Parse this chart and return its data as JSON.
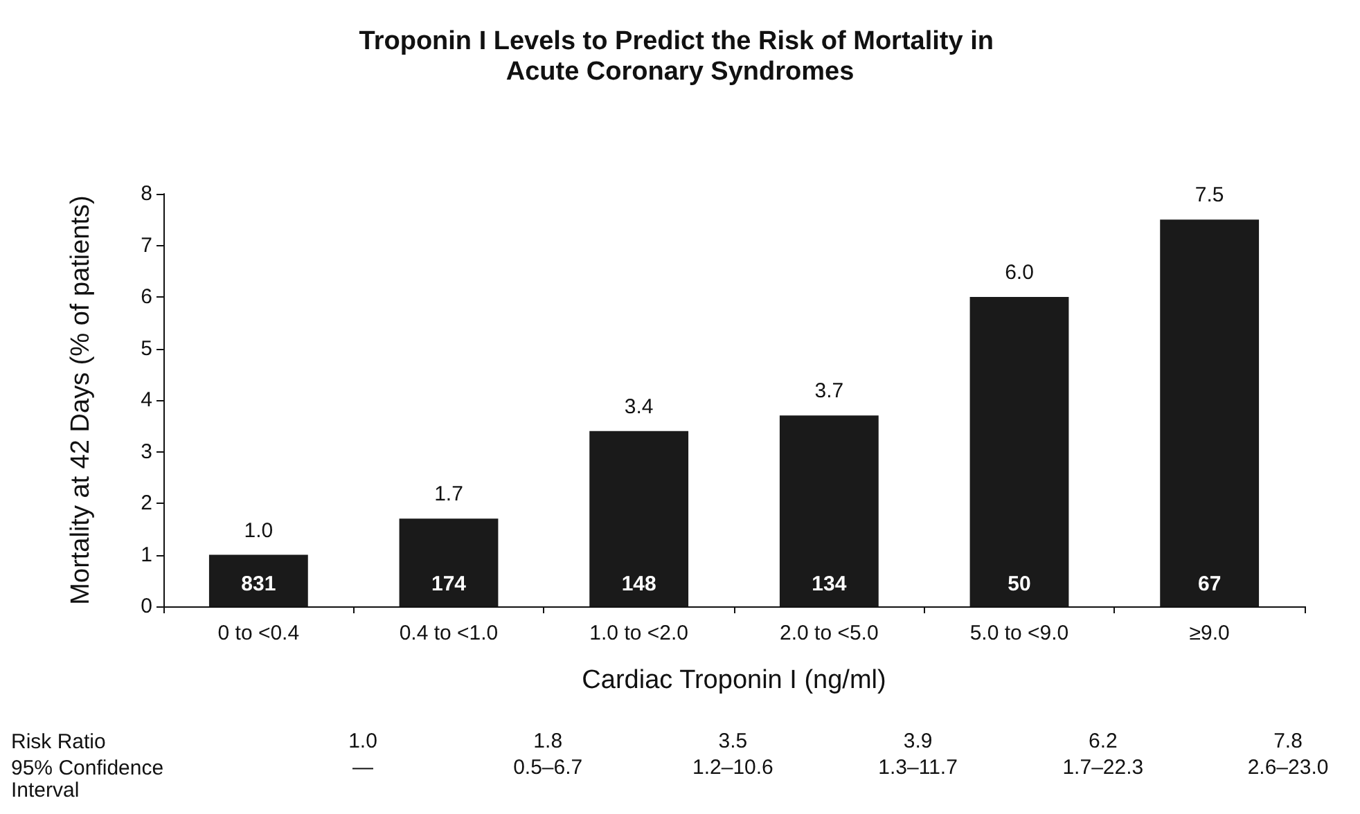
{
  "chart_data": {
    "type": "bar",
    "title": "Troponin I Levels to Predict the Risk of Mortality in Acute Coronary Syndromes",
    "xlabel": "Cardiac Troponin I (ng/ml)",
    "ylabel": "Mortality at 42 Days (% of patients)",
    "categories": [
      "0 to <0.4",
      "0.4 to <1.0",
      "1.0 to <2.0",
      "2.0 to <5.0",
      "5.0 to <9.0",
      "≥9.0"
    ],
    "values": [
      1.0,
      1.7,
      3.4,
      3.7,
      6.0,
      7.5
    ],
    "color": "#1a1a1a",
    "ylim": [
      0,
      8
    ],
    "yticks": [
      0,
      1,
      2,
      3,
      4,
      5,
      6,
      7,
      8
    ],
    "grid": false,
    "value_labels": [
      "1.0",
      "1.7",
      "3.4",
      "3.7",
      "6.0",
      "7.5"
    ],
    "annotations": [
      "831",
      "174",
      "148",
      "134",
      "50",
      "67",
      "Risk Ratio",
      "95% Confidence Interval",
      "1.0",
      "1.8",
      "3.5",
      "3.9",
      "6.2",
      "7.8",
      "—",
      "0.5–6.7",
      "1.2–10.6",
      "1.3–11.7",
      "1.7–22.3",
      "2.6–23.0"
    ]
  }
}
